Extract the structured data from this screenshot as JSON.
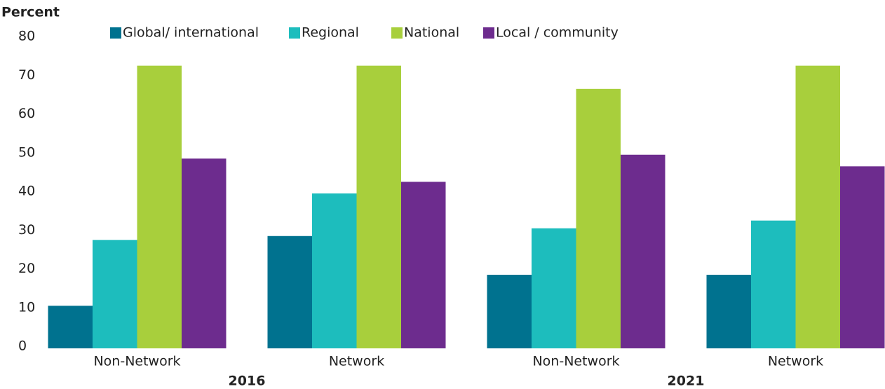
{
  "chart_data": {
    "type": "bar",
    "y_axis_label": "Percent",
    "categories": [
      "Non-Network",
      "Network",
      "Non-Network",
      "Network"
    ],
    "group_labels": [
      "2016",
      "2021"
    ],
    "series": [
      {
        "name": "Global/ international",
        "color": "#00728f",
        "values": [
          11,
          29,
          19,
          19
        ]
      },
      {
        "name": "Regional",
        "color": "#1dbdbd",
        "values": [
          28,
          40,
          31,
          33
        ]
      },
      {
        "name": "National",
        "color": "#a8cf3c",
        "values": [
          73,
          73,
          67,
          73
        ]
      },
      {
        "name": "Local / community",
        "color": "#6d2c8e",
        "values": [
          49,
          43,
          50,
          47
        ]
      }
    ],
    "ylim": [
      0,
      80
    ],
    "yticks": [
      0,
      10,
      20,
      30,
      40,
      50,
      60,
      70,
      80
    ],
    "grid": false
  }
}
